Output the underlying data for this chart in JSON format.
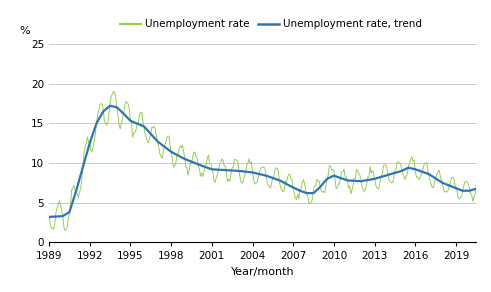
{
  "title": "",
  "xlabel": "Year/month",
  "ylabel": "%",
  "ylim": [
    0,
    25
  ],
  "yticks": [
    0,
    5,
    10,
    15,
    20,
    25
  ],
  "xtick_years": [
    1989,
    1992,
    1995,
    1998,
    2001,
    2004,
    2007,
    2010,
    2013,
    2016,
    2019
  ],
  "legend_labels": [
    "Unemployment rate",
    "Unemployment rate, trend"
  ],
  "line_color_raw": "#92d050",
  "line_color_trend": "#2e75b6",
  "background_color": "#ffffff",
  "grid_color": "#bfbfbf",
  "start_year": 1989,
  "start_month": 1,
  "end_year": 2020,
  "end_month": 7,
  "trend_keypoints_x": [
    1989.0,
    1990.0,
    1990.5,
    1991.0,
    1991.5,
    1992.0,
    1992.5,
    1993.0,
    1993.5,
    1994.0,
    1994.5,
    1995.0,
    1996.0,
    1997.0,
    1998.0,
    1999.0,
    2000.0,
    2001.0,
    2002.0,
    2003.0,
    2004.0,
    2005.0,
    2006.0,
    2007.0,
    2007.5,
    2008.0,
    2008.5,
    2009.0,
    2009.5,
    2010.0,
    2011.0,
    2012.0,
    2013.0,
    2014.0,
    2015.0,
    2015.5,
    2016.0,
    2017.0,
    2018.0,
    2019.0,
    2019.5,
    2020.0,
    2020.583
  ],
  "trend_keypoints_y": [
    3.2,
    3.3,
    3.8,
    6.5,
    9.5,
    12.5,
    15.0,
    16.5,
    17.2,
    17.0,
    16.2,
    15.3,
    14.6,
    12.7,
    11.4,
    10.5,
    9.8,
    9.2,
    9.1,
    9.0,
    8.8,
    8.4,
    7.8,
    6.9,
    6.5,
    6.2,
    6.2,
    7.0,
    8.0,
    8.4,
    7.8,
    7.7,
    8.0,
    8.5,
    9.0,
    9.4,
    9.2,
    8.6,
    7.5,
    6.8,
    6.5,
    6.5,
    6.8
  ]
}
